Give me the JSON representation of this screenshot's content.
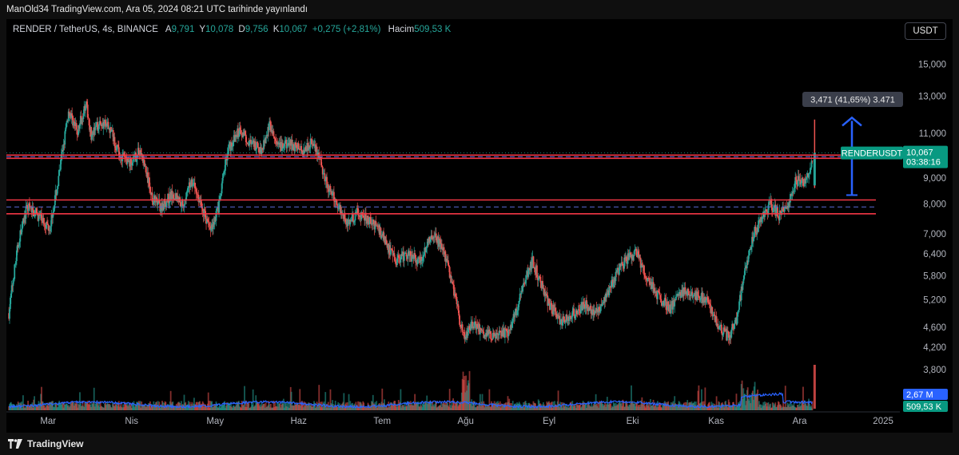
{
  "header": {
    "published": "ManOld34 TradingView.com, Ara 05, 2024 08:21 UTC tarihinde yayınlandı"
  },
  "legend": {
    "symbol": "RENDER / TetherUS, 4s, BINANCE",
    "open_label": "A",
    "open": "9,791",
    "high_label": "Y",
    "high": "10,078",
    "low_label": "D",
    "low": "9,756",
    "close_label": "K",
    "close": "10,067",
    "change": "+0,275 (+2,81%)",
    "volume_label": "Hacim",
    "volume": "509,53 K"
  },
  "currency": "USDT",
  "footer": {
    "brand": "TradingView"
  },
  "colors": {
    "up": "#26a69a",
    "down": "#ef5350",
    "level": "#f23645",
    "arrow": "#2962ff",
    "volume_ma": "#2962ff"
  },
  "chart_data": {
    "type": "candlestick",
    "symbol": "RENDERUSDT",
    "y_scale": "log",
    "ylim": [
      3.5,
      16.5
    ],
    "y_ticks": [
      "15,000",
      "13,000",
      "11,000",
      "9,000",
      "8,000",
      "7,000",
      "6,400",
      "5,800",
      "5,200",
      "4,600",
      "4,200",
      "3,800"
    ],
    "y_tick_values": [
      15,
      13,
      11,
      9,
      8,
      7,
      6.4,
      5.8,
      5.2,
      4.6,
      4.2,
      3.8
    ],
    "x_ticks": [
      "Mar",
      "Nis",
      "May",
      "Haz",
      "Tem",
      "Ağu",
      "Eyl",
      "Eki",
      "Kas",
      "Ara",
      "2025"
    ],
    "x_tick_months": [
      0,
      1,
      2,
      3,
      4,
      5,
      6,
      7,
      8,
      9,
      10
    ],
    "x_range_months": [
      -0.5,
      10.2
    ],
    "price_path": [
      [
        -0.47,
        4.9
      ],
      [
        -0.35,
        6.8
      ],
      [
        -0.25,
        7.9
      ],
      [
        -0.12,
        7.6
      ],
      [
        0.02,
        7.2
      ],
      [
        0.12,
        8.8
      ],
      [
        0.25,
        12.2
      ],
      [
        0.35,
        11.0
      ],
      [
        0.45,
        12.6
      ],
      [
        0.52,
        10.8
      ],
      [
        0.62,
        11.6
      ],
      [
        0.75,
        11.2
      ],
      [
        0.85,
        10.0
      ],
      [
        1.0,
        9.6
      ],
      [
        1.1,
        10.2
      ],
      [
        1.25,
        8.2
      ],
      [
        1.35,
        7.9
      ],
      [
        1.5,
        8.4
      ],
      [
        1.62,
        8.0
      ],
      [
        1.72,
        8.9
      ],
      [
        1.85,
        7.8
      ],
      [
        1.95,
        7.1
      ],
      [
        2.05,
        8.0
      ],
      [
        2.15,
        10.2
      ],
      [
        2.3,
        11.2
      ],
      [
        2.42,
        10.5
      ],
      [
        2.55,
        10.2
      ],
      [
        2.65,
        11.4
      ],
      [
        2.75,
        10.3
      ],
      [
        2.9,
        10.5
      ],
      [
        3.05,
        10.2
      ],
      [
        3.15,
        10.6
      ],
      [
        3.25,
        9.8
      ],
      [
        3.35,
        8.6
      ],
      [
        3.5,
        7.8
      ],
      [
        3.6,
        7.3
      ],
      [
        3.7,
        7.7
      ],
      [
        3.8,
        7.5
      ],
      [
        3.95,
        7.2
      ],
      [
        4.05,
        6.7
      ],
      [
        4.15,
        6.2
      ],
      [
        4.3,
        6.4
      ],
      [
        4.45,
        6.2
      ],
      [
        4.6,
        7.0
      ],
      [
        4.72,
        6.6
      ],
      [
        4.82,
        5.8
      ],
      [
        4.92,
        4.8
      ],
      [
        5.0,
        4.4
      ],
      [
        5.1,
        4.7
      ],
      [
        5.2,
        4.5
      ],
      [
        5.35,
        4.4
      ],
      [
        5.5,
        4.5
      ],
      [
        5.6,
        4.9
      ],
      [
        5.68,
        5.5
      ],
      [
        5.8,
        6.2
      ],
      [
        5.9,
        5.6
      ],
      [
        6.0,
        5.1
      ],
      [
        6.15,
        4.7
      ],
      [
        6.3,
        4.9
      ],
      [
        6.45,
        5.1
      ],
      [
        6.55,
        4.9
      ],
      [
        6.7,
        5.3
      ],
      [
        6.82,
        5.9
      ],
      [
        6.95,
        6.3
      ],
      [
        7.05,
        6.4
      ],
      [
        7.15,
        5.8
      ],
      [
        7.3,
        5.3
      ],
      [
        7.45,
        5.0
      ],
      [
        7.6,
        5.4
      ],
      [
        7.75,
        5.3
      ],
      [
        7.9,
        5.2
      ],
      [
        8.02,
        4.6
      ],
      [
        8.15,
        4.4
      ],
      [
        8.25,
        4.8
      ],
      [
        8.35,
        6.0
      ],
      [
        8.45,
        7.0
      ],
      [
        8.55,
        7.5
      ],
      [
        8.65,
        8.0
      ],
      [
        8.75,
        7.6
      ],
      [
        8.85,
        7.9
      ],
      [
        8.95,
        8.9
      ],
      [
        9.05,
        8.8
      ],
      [
        9.12,
        9.2
      ],
      [
        9.16,
        10.067
      ]
    ],
    "volume_ma_label": "2,67 M",
    "volume_label": "509,53 K",
    "horizontal_levels": [
      {
        "color": "red",
        "price": 9.97
      },
      {
        "color": "red",
        "price": 9.83
      },
      {
        "color": "red",
        "price": 8.15
      },
      {
        "color": "red",
        "price": 7.66
      },
      {
        "color": "blue-dashed",
        "price": 9.9
      },
      {
        "color": "blue-dashed",
        "price": 7.9
      }
    ],
    "measure": {
      "from_price": 8.33,
      "to_price": 11.8,
      "label": "3,471 (41,65%) 3.471"
    },
    "last_price_label": "10,067",
    "countdown_label": "03:38:16",
    "symbol_label": "RENDERUSDT"
  }
}
